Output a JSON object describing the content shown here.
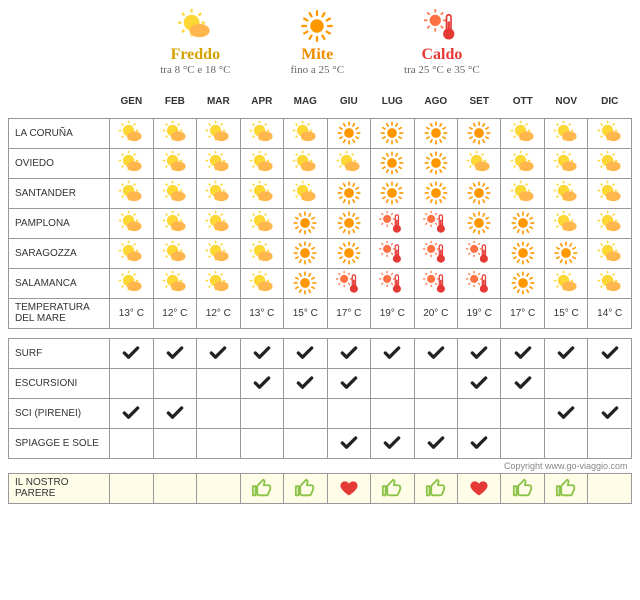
{
  "legend": [
    {
      "title": "Freddo",
      "sub": "tra 8 °C e 18 °C",
      "icon": "cold",
      "title_color": "#d4a300"
    },
    {
      "title": "Mite",
      "sub": "fino a 25 °C",
      "icon": "mild",
      "title_color": "#f28c00"
    },
    {
      "title": "Caldo",
      "sub": "tra 25 °C e 35 °C",
      "icon": "hot",
      "title_color": "#e53935"
    }
  ],
  "months": [
    "GEN",
    "FEB",
    "MAR",
    "APR",
    "MAG",
    "GIU",
    "LUG",
    "AGO",
    "SET",
    "OTT",
    "NOV",
    "DIC"
  ],
  "weather_rows": [
    {
      "city": "LA CORUÑA",
      "cells": [
        "cold",
        "cold",
        "cold",
        "cold",
        "cold",
        "mild",
        "mild",
        "mild",
        "mild",
        "cold",
        "cold",
        "cold"
      ]
    },
    {
      "city": "OVIEDO",
      "cells": [
        "cold",
        "cold",
        "cold",
        "cold",
        "cold",
        "cold",
        "mild",
        "mild",
        "cold",
        "cold",
        "cold",
        "cold"
      ]
    },
    {
      "city": "SANTANDER",
      "cells": [
        "cold",
        "cold",
        "cold",
        "cold",
        "cold",
        "mild",
        "mild",
        "mild",
        "mild",
        "cold",
        "cold",
        "cold"
      ]
    },
    {
      "city": "PAMPLONA",
      "cells": [
        "cold",
        "cold",
        "cold",
        "cold",
        "mild",
        "mild",
        "hot",
        "hot",
        "mild",
        "mild",
        "cold",
        "cold"
      ]
    },
    {
      "city": "SARAGOZZA",
      "cells": [
        "cold",
        "cold",
        "cold",
        "cold",
        "mild",
        "mild",
        "hot",
        "hot",
        "hot",
        "mild",
        "mild",
        "cold"
      ]
    },
    {
      "city": "SALAMANCA",
      "cells": [
        "cold",
        "cold",
        "cold",
        "cold",
        "mild",
        "hot",
        "hot",
        "hot",
        "hot",
        "mild",
        "cold",
        "cold"
      ]
    }
  ],
  "sea_temp": {
    "label": "TEMPERATURA DEL MARE",
    "values": [
      "13° C",
      "12° C",
      "12° C",
      "13° C",
      "15° C",
      "17° C",
      "19° C",
      "20° C",
      "19° C",
      "17° C",
      "15° C",
      "14° C"
    ]
  },
  "activity_rows": [
    {
      "label": "SURF",
      "cells": [
        true,
        true,
        true,
        true,
        true,
        true,
        true,
        true,
        true,
        true,
        true,
        true
      ]
    },
    {
      "label": "ESCURSIONI",
      "cells": [
        false,
        false,
        false,
        true,
        true,
        true,
        false,
        false,
        true,
        true,
        false,
        false
      ]
    },
    {
      "label": "SCI (PIRENEI)",
      "cells": [
        true,
        true,
        false,
        false,
        false,
        false,
        false,
        false,
        false,
        false,
        true,
        true
      ]
    },
    {
      "label": "SPIAGGE E SOLE",
      "cells": [
        false,
        false,
        false,
        false,
        false,
        true,
        true,
        true,
        true,
        false,
        false,
        false
      ]
    }
  ],
  "copyright": "Copyright www.go-viaggio.com",
  "opinion": {
    "label": "IL NOSTRO PARERE",
    "cells": [
      "",
      "",
      "",
      "thumb",
      "thumb",
      "heart",
      "thumb",
      "thumb",
      "heart",
      "thumb",
      "thumb",
      ""
    ]
  },
  "colors": {
    "cold_sun": "#fdd835",
    "cold_cloud": "#ffb74d",
    "mild_sun": "#ff9800",
    "hot_therm": "#e53935",
    "hot_sun": "#ff7043",
    "check": "#222",
    "thumb": "#8bc34a",
    "heart": "#e53935",
    "border": "#999",
    "opinion_bg": "#fffde7"
  }
}
